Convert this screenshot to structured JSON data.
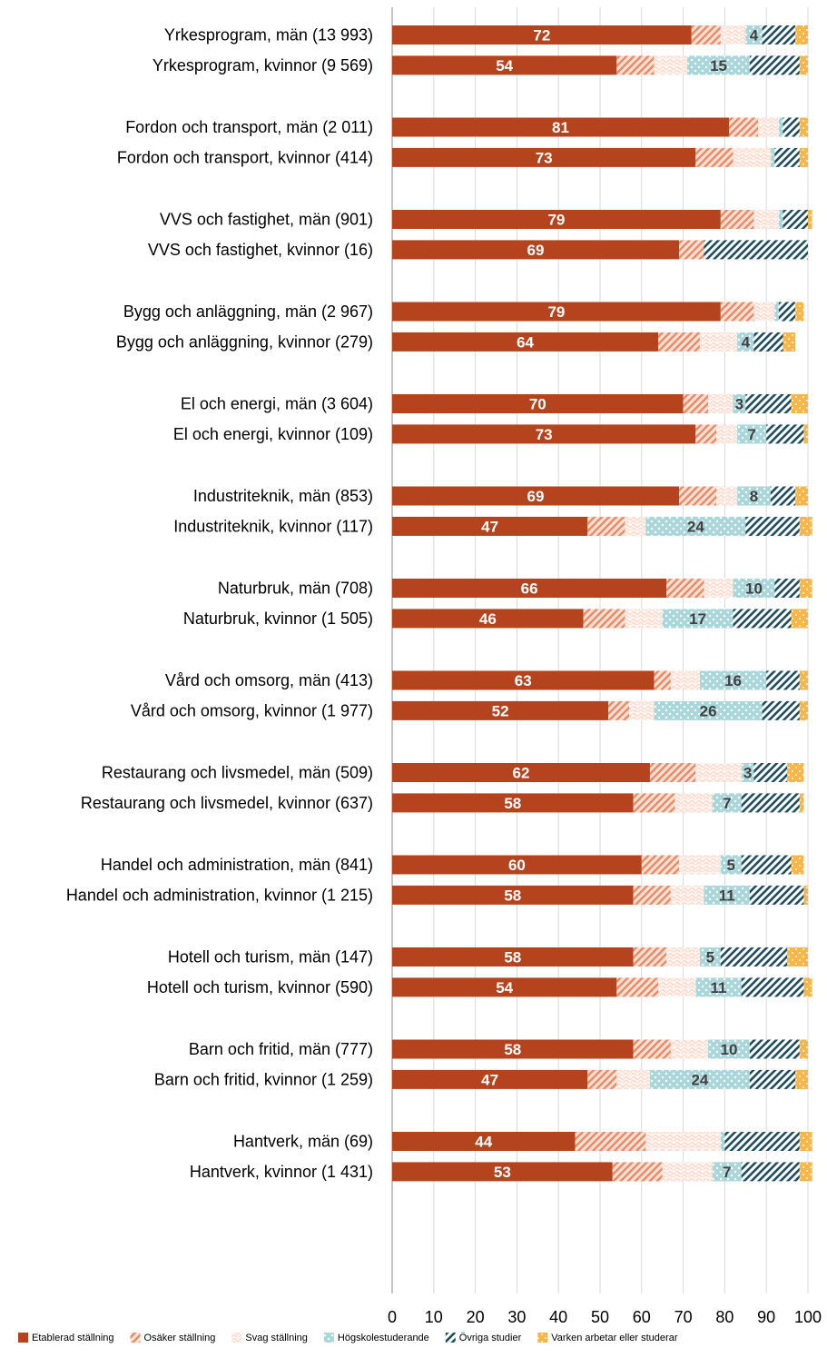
{
  "chart_data": {
    "type": "bar",
    "orientation": "horizontal",
    "stacked": true,
    "title": "",
    "xlabel": "",
    "ylabel": "",
    "xlim": [
      0,
      100
    ],
    "x_ticks": [
      "0",
      "10",
      "20",
      "30",
      "40",
      "50",
      "60",
      "70",
      "80",
      "90",
      "100"
    ],
    "grid": "vertical lines",
    "legend_position": "bottom",
    "categories": [
      "Yrkesprogram, män (13 993)",
      "Yrkesprogram, kvinnor (9 569)",
      "Fordon och transport, män (2 011)",
      "Fordon och transport, kvinnor (414)",
      "VVS och fastighet, män (901)",
      "VVS och fastighet, kvinnor (16)",
      "Bygg och anläggning, män (2 967)",
      "Bygg och anläggning, kvinnor (279)",
      "El och energi, män (3 604)",
      "El och energi, kvinnor (109)",
      "Industriteknik, män (853)",
      "Industriteknik, kvinnor (117)",
      "Naturbruk, män (708)",
      "Naturbruk, kvinnor (1 505)",
      "Vård och omsorg, män (413)",
      "Vård och omsorg, kvinnor (1 977)",
      "Restaurang och livsmedel, män (509)",
      "Restaurang och livsmedel, kvinnor (637)",
      "Handel och administration, män (841)",
      "Handel och administration, kvinnor (1 215)",
      "Hotell och turism, män (147)",
      "Hotell och turism, kvinnor (590)",
      "Barn och fritid, män (777)",
      "Barn och fritid, kvinnor (1 259)",
      "Hantverk, män (69)",
      "Hantverk, kvinnor (1 431)"
    ],
    "series": [
      {
        "name": "Etablerad ställning",
        "color": "#b5441e",
        "pattern": "solid",
        "values": [
          72,
          54,
          81,
          73,
          79,
          69,
          79,
          64,
          70,
          73,
          69,
          47,
          66,
          46,
          63,
          52,
          62,
          58,
          60,
          58,
          58,
          54,
          58,
          47,
          44,
          53
        ],
        "labels": [
          "72",
          "54",
          "81",
          "73",
          "79",
          "69",
          "79",
          "64",
          "70",
          "73",
          "69",
          "47",
          "66",
          "46",
          "63",
          "52",
          "62",
          "58",
          "60",
          "58",
          "58",
          "54",
          "58",
          "47",
          "44",
          "53"
        ]
      },
      {
        "name": "Osäker ställning",
        "color": "#ec8a66",
        "pattern": "diagonal",
        "values": [
          7,
          9,
          7,
          9,
          8,
          6,
          8,
          10,
          6,
          5,
          9,
          9,
          9,
          10,
          4,
          5,
          11,
          10,
          9,
          9,
          8,
          10,
          9,
          7,
          17,
          12
        ],
        "labels": [
          "",
          "",
          "",
          "",
          "",
          "",
          "",
          "",
          "",
          "",
          "",
          "",
          "",
          "",
          "",
          "",
          "",
          "",
          "",
          "",
          "",
          "",
          "",
          "",
          "",
          ""
        ]
      },
      {
        "name": "Svag ställning",
        "color": "#fbd7c9",
        "pattern": "wave",
        "values": [
          6,
          8,
          5,
          9,
          6,
          0,
          5,
          9,
          6,
          5,
          5,
          5,
          7,
          9,
          7,
          6,
          11,
          9,
          10,
          8,
          8,
          9,
          9,
          8,
          18,
          12
        ],
        "labels": [
          "",
          "",
          "",
          "",
          "",
          "",
          "",
          "",
          "",
          "",
          "",
          "",
          "",
          "",
          "",
          "",
          "",
          "",
          "",
          "",
          "",
          "",
          "",
          "",
          "",
          ""
        ]
      },
      {
        "name": "Högskolestuderande",
        "color": "#a9d6da",
        "pattern": "crosses",
        "values": [
          4,
          15,
          1,
          1,
          1,
          0,
          1,
          4,
          3,
          7,
          8,
          24,
          10,
          17,
          16,
          26,
          3,
          7,
          5,
          11,
          5,
          11,
          10,
          24,
          1,
          7
        ],
        "labels": [
          "4",
          "15",
          "",
          "",
          "",
          "",
          "",
          "4",
          "3",
          "7",
          "8",
          "24",
          "10",
          "17",
          "16",
          "26",
          "3",
          "7",
          "5",
          "11",
          "5",
          "11",
          "10",
          "24",
          "",
          "7"
        ]
      },
      {
        "name": "Övriga studier",
        "color": "#1f4e5f",
        "pattern": "hatch",
        "values": [
          8,
          12,
          4,
          6,
          6,
          25,
          4,
          7,
          11,
          9,
          6,
          13,
          6,
          14,
          8,
          9,
          8,
          14,
          12,
          13,
          16,
          15,
          12,
          11,
          18,
          14
        ],
        "labels": [
          "",
          "",
          "",
          "",
          "",
          "",
          "",
          "",
          "",
          "",
          "",
          "",
          "",
          "",
          "",
          "",
          "",
          "",
          "",
          "",
          "",
          "",
          "",
          "",
          "",
          ""
        ]
      },
      {
        "name": "Varken arbetar eller studerar",
        "color": "#f6b64a",
        "pattern": "checker",
        "values": [
          3,
          2,
          2,
          2,
          1,
          0,
          2,
          3,
          4,
          1,
          3,
          3,
          3,
          4,
          2,
          2,
          4,
          1,
          3,
          1,
          5,
          2,
          2,
          3,
          3,
          3
        ],
        "labels": [
          "",
          "",
          "",
          "",
          "",
          "",
          "",
          "",
          "",
          "",
          "",
          "",
          "",
          "",
          "",
          "",
          "",
          "",
          "",
          "",
          "",
          "",
          "",
          "",
          "",
          ""
        ]
      }
    ]
  }
}
